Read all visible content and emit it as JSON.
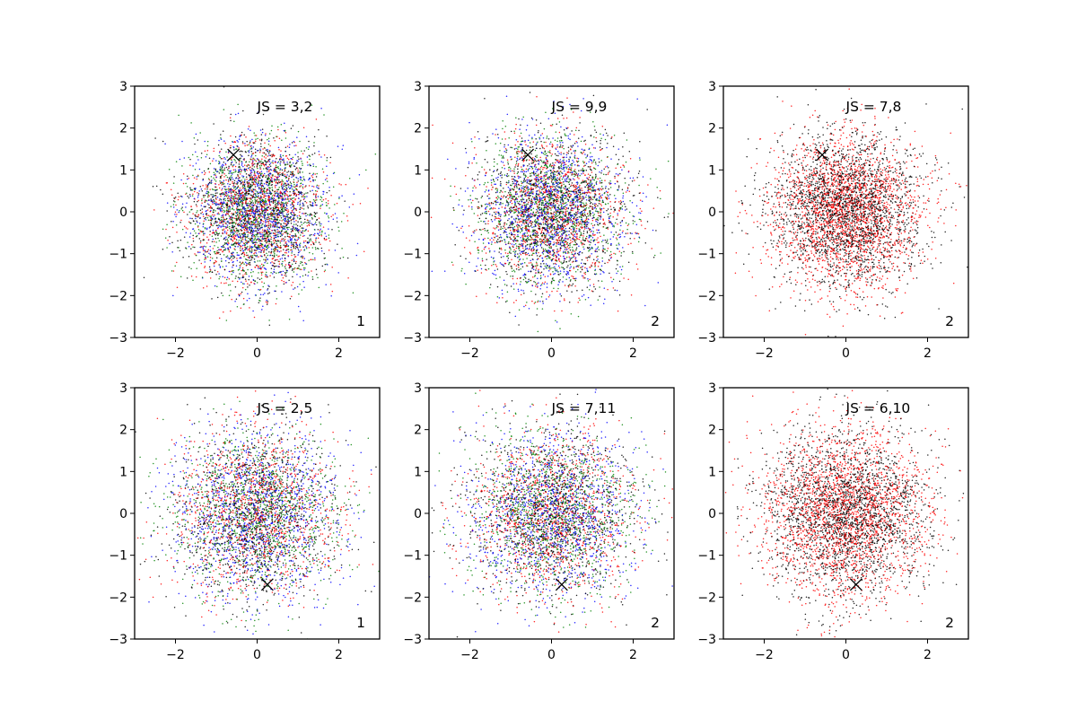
{
  "chart_data": [
    {
      "type": "scatter",
      "xlim": [
        -3,
        3
      ],
      "ylim": [
        -3,
        3
      ],
      "xticks": [
        -2,
        0,
        2
      ],
      "yticks": [
        -3,
        -2,
        -1,
        0,
        1,
        2,
        3
      ],
      "annotation": "JS = 3,2",
      "corner_label": "1",
      "marker": {
        "x": -0.58,
        "y": 1.36,
        "symbol": "x"
      },
      "series_colors": [
        "#0000ff",
        "#008000",
        "#ff0000",
        "#000000"
      ],
      "distribution": {
        "type": "gaussian",
        "mean": [
          0,
          0
        ],
        "std": 0.85,
        "points_per_series": 1100
      },
      "grid": false
    },
    {
      "type": "scatter",
      "xlim": [
        -3,
        3
      ],
      "ylim": [
        -3,
        3
      ],
      "xticks": [
        -2,
        0,
        2
      ],
      "yticks": [
        -3,
        -2,
        -1,
        0,
        1,
        2,
        3
      ],
      "annotation": "JS = 9,9",
      "corner_label": "2",
      "marker": {
        "x": -0.58,
        "y": 1.36,
        "symbol": "x"
      },
      "series_colors": [
        "#0000ff",
        "#008000",
        "#ff0000",
        "#000000"
      ],
      "distribution": {
        "type": "gaussian",
        "mean": [
          0,
          0
        ],
        "std": 0.9,
        "points_per_series": 1100
      },
      "grid": false
    },
    {
      "type": "scatter",
      "xlim": [
        -3,
        3
      ],
      "ylim": [
        -3,
        3
      ],
      "xticks": [
        -2,
        0,
        2
      ],
      "yticks": [
        -3,
        -2,
        -1,
        0,
        1,
        2,
        3
      ],
      "annotation": "JS = 7,8",
      "corner_label": "2",
      "marker": {
        "x": -0.58,
        "y": 1.36,
        "symbol": "x"
      },
      "series_colors": [
        "#ff0000",
        "#000000"
      ],
      "distribution": {
        "type": "gaussian",
        "mean": [
          0,
          0
        ],
        "std": 0.9,
        "points_per_series": 2200
      },
      "grid": false
    },
    {
      "type": "scatter",
      "xlim": [
        -3,
        3
      ],
      "ylim": [
        -3,
        3
      ],
      "xticks": [
        -2,
        0,
        2
      ],
      "yticks": [
        -3,
        -2,
        -1,
        0,
        1,
        2,
        3
      ],
      "annotation": "JS = 2,5",
      "corner_label": "1",
      "marker": {
        "x": 0.25,
        "y": -1.7,
        "symbol": "x"
      },
      "series_colors": [
        "#0000ff",
        "#008000",
        "#ff0000",
        "#000000"
      ],
      "distribution": {
        "type": "gaussian",
        "mean": [
          0,
          0
        ],
        "std": 1.0,
        "points_per_series": 1100
      },
      "grid": false
    },
    {
      "type": "scatter",
      "xlim": [
        -3,
        3
      ],
      "ylim": [
        -3,
        3
      ],
      "xticks": [
        -2,
        0,
        2
      ],
      "yticks": [
        -3,
        -2,
        -1,
        0,
        1,
        2,
        3
      ],
      "annotation": "JS = 7,11",
      "corner_label": "2",
      "marker": {
        "x": 0.25,
        "y": -1.7,
        "symbol": "x"
      },
      "series_colors": [
        "#0000ff",
        "#008000",
        "#ff0000",
        "#000000"
      ],
      "distribution": {
        "type": "gaussian",
        "mean": [
          0,
          0
        ],
        "std": 1.0,
        "points_per_series": 1100
      },
      "grid": false
    },
    {
      "type": "scatter",
      "xlim": [
        -3,
        3
      ],
      "ylim": [
        -3,
        3
      ],
      "xticks": [
        -2,
        0,
        2
      ],
      "yticks": [
        -3,
        -2,
        -1,
        0,
        1,
        2,
        3
      ],
      "annotation": "JS = 6,10",
      "corner_label": "2",
      "marker": {
        "x": 0.25,
        "y": -1.7,
        "symbol": "x"
      },
      "series_colors": [
        "#ff0000",
        "#000000"
      ],
      "distribution": {
        "type": "gaussian",
        "mean": [
          0,
          0
        ],
        "std": 1.0,
        "points_per_series": 2200
      },
      "grid": false
    }
  ]
}
